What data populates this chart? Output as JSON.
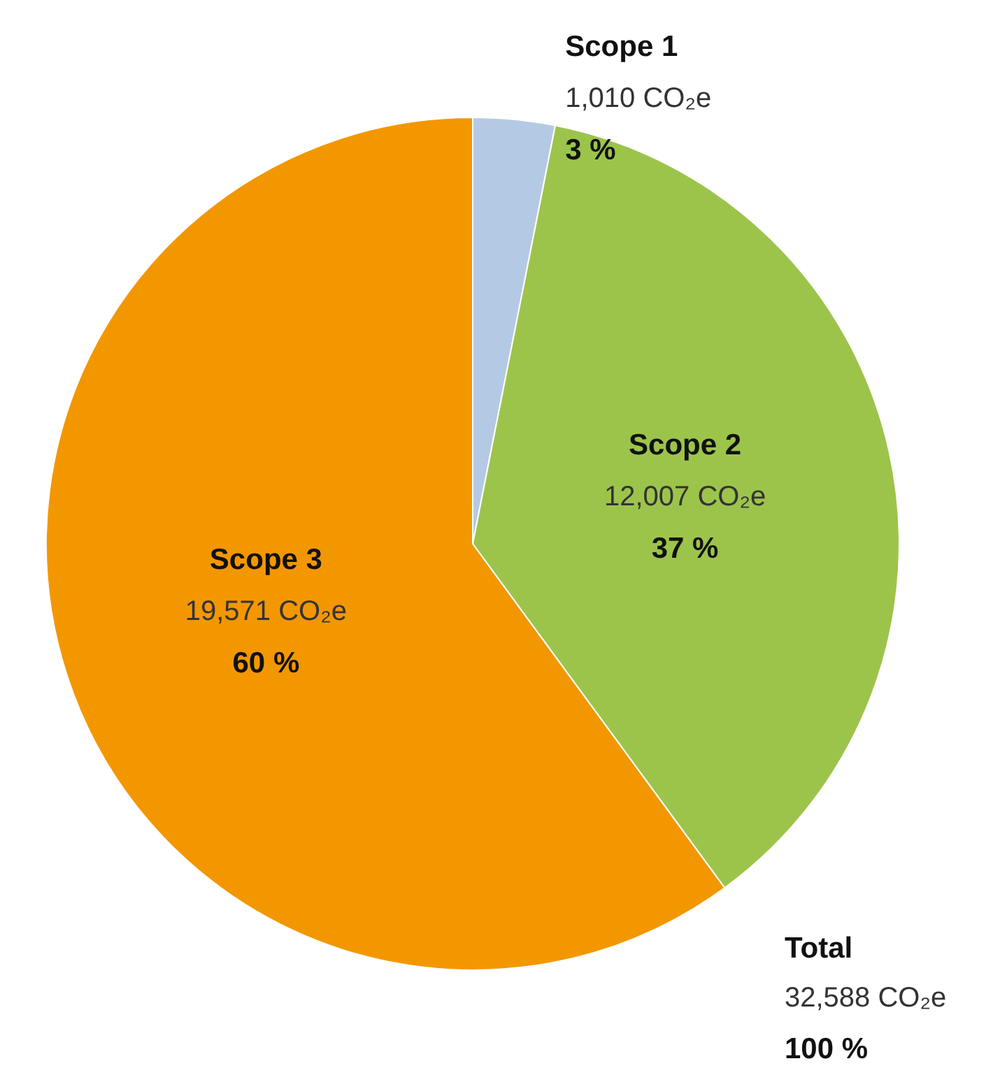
{
  "chart_data": {
    "type": "pie",
    "categories": [
      "Scope 1",
      "Scope 2",
      "Scope 3"
    ],
    "values": [
      1010,
      12007,
      19571
    ],
    "colors": [
      "#b4c9e4",
      "#9cc44b",
      "#f39700"
    ],
    "value_labels": [
      "1,010 CO₂e\n3 %",
      "12,007 CO₂e\n37 %",
      "19,571 CO₂e\n60 %"
    ],
    "annotations": [
      "Total",
      "32,588 CO₂e",
      "100 %"
    ]
  }
}
